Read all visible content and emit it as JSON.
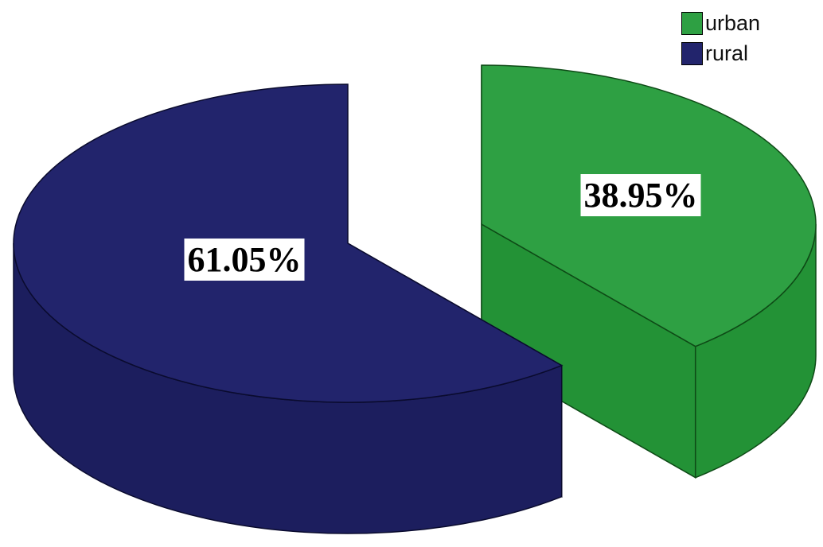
{
  "chart_data": {
    "type": "pie",
    "style": "3d-exploded",
    "categories": [
      "urban",
      "rural"
    ],
    "values": [
      38.95,
      61.05
    ],
    "labels": [
      "38.95%",
      "61.05%"
    ],
    "colors": {
      "urban": {
        "top": "#2ea043",
        "side": "#239236",
        "edge": "#0e4a16"
      },
      "rural": {
        "top": "#22246c",
        "side": "#1c1e5e",
        "edge": "#0a0b2e"
      }
    },
    "legend": {
      "position": "top-right",
      "entries": [
        {
          "label": "urban",
          "color": "#2ea043"
        },
        {
          "label": "rural",
          "color": "#22246c"
        }
      ]
    },
    "title": "",
    "xlabel": "",
    "ylabel": ""
  }
}
